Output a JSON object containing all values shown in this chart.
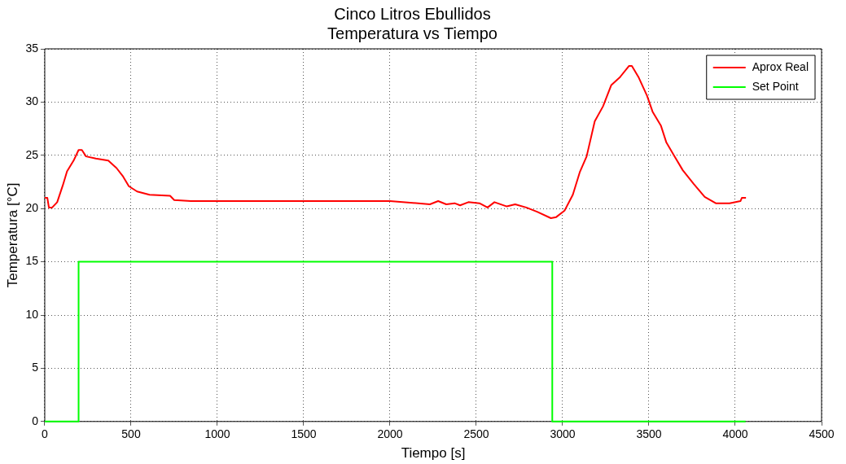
{
  "chart_data": {
    "type": "line",
    "title": "Cinco Litros Ebullidos",
    "subtitle": "Temperatura vs Tiempo",
    "xlabel": "Tiempo [s]",
    "ylabel": "Temperatura [°C]",
    "xlim": [
      0,
      4500
    ],
    "xticks": [
      0,
      500,
      1000,
      1500,
      2000,
      2500,
      3000,
      3500,
      4000,
      4500
    ],
    "ylim": [
      0,
      35
    ],
    "yticks": [
      0,
      5,
      10,
      15,
      20,
      25,
      30,
      35
    ],
    "grid": true,
    "legend": "top right",
    "marker": "none",
    "line_style": "solid",
    "series": [
      {
        "name": "Aprox Real",
        "color": "#ff0000",
        "x": [
          0,
          15,
          24,
          43,
          72,
          105,
          129,
          167,
          196,
          215,
          239,
          296,
          368,
          416,
          454,
          487,
          535,
          607,
          726,
          750,
          846,
          1132,
          1500,
          2000,
          2231,
          2279,
          2326,
          2374,
          2406,
          2454,
          2518,
          2565,
          2605,
          2677,
          2725,
          2789,
          2852,
          2932,
          2963,
          3011,
          3059,
          3099,
          3139,
          3186,
          3234,
          3282,
          3330,
          3385,
          3401,
          3441,
          3489,
          3521,
          3569,
          3601,
          3648,
          3696,
          3760,
          3823,
          3887,
          3967,
          4030,
          4038,
          4062
        ],
        "values": [
          21,
          21,
          20.1,
          20.1,
          20.6,
          22.2,
          23.5,
          24.5,
          25.5,
          25.5,
          24.9,
          24.7,
          24.5,
          23.8,
          23,
          22.1,
          21.6,
          21.3,
          21.2,
          20.8,
          20.7,
          20.7,
          20.7,
          20.7,
          20.4,
          20.7,
          20.4,
          20.5,
          20.3,
          20.6,
          20.5,
          20.1,
          20.6,
          20.2,
          20.4,
          20.1,
          19.7,
          19.1,
          19.2,
          19.8,
          21.3,
          23.4,
          24.9,
          28.2,
          29.6,
          31.6,
          32.3,
          33.4,
          33.4,
          32.3,
          30.6,
          29.1,
          27.8,
          26.2,
          24.9,
          23.6,
          22.3,
          21.1,
          20.5,
          20.5,
          20.7,
          21,
          21
        ]
      },
      {
        "name": "Set Point",
        "color": "#00ff00",
        "x": [
          0,
          196,
          196,
          2940,
          2940,
          4060
        ],
        "values": [
          0,
          0,
          15,
          15,
          0,
          0
        ]
      }
    ]
  }
}
